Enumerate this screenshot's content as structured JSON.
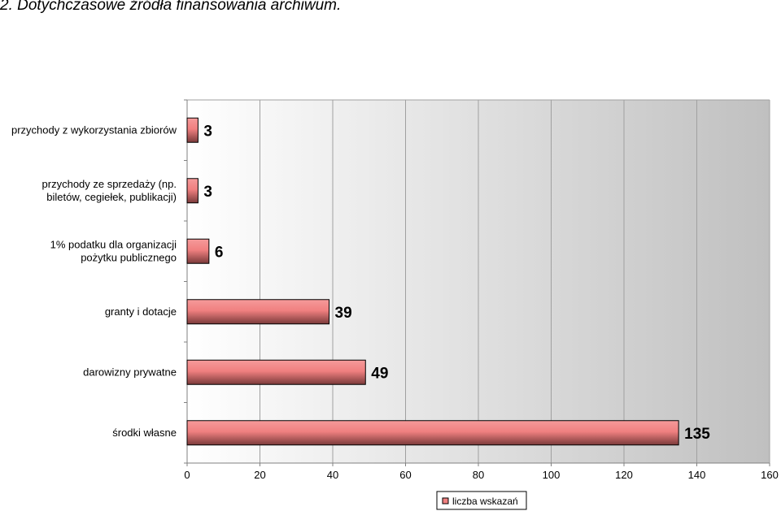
{
  "page": {
    "title": "2.  Dotychczasowe źródła finansowania archiwum."
  },
  "chart_data": {
    "type": "bar",
    "orientation": "horizontal",
    "categories": [
      [
        "przychody z wykorzystania zbiorów"
      ],
      [
        "przychody ze sprzedaży (np.",
        "biletów, cegiełek, publikacji)"
      ],
      [
        "1% podatku dla organizacji",
        "pożytku publicznego"
      ],
      [
        "granty i dotacje"
      ],
      [
        "darowizny prywatne"
      ],
      [
        "środki własne"
      ]
    ],
    "series": [
      {
        "name": "liczba wskazań",
        "values": [
          3,
          3,
          6,
          39,
          49,
          135
        ]
      }
    ],
    "xlim": [
      0,
      160
    ],
    "xticks": [
      0,
      20,
      40,
      60,
      80,
      100,
      120,
      140,
      160
    ],
    "grid": true,
    "legend_position": "bottom-center",
    "colors": {
      "bar_fill": "#f08080",
      "bar_stroke": "#000000",
      "gridline": "#a0a0a0",
      "plot_bg_start": "#ffffff",
      "plot_bg_end": "#c0c0c0"
    }
  }
}
